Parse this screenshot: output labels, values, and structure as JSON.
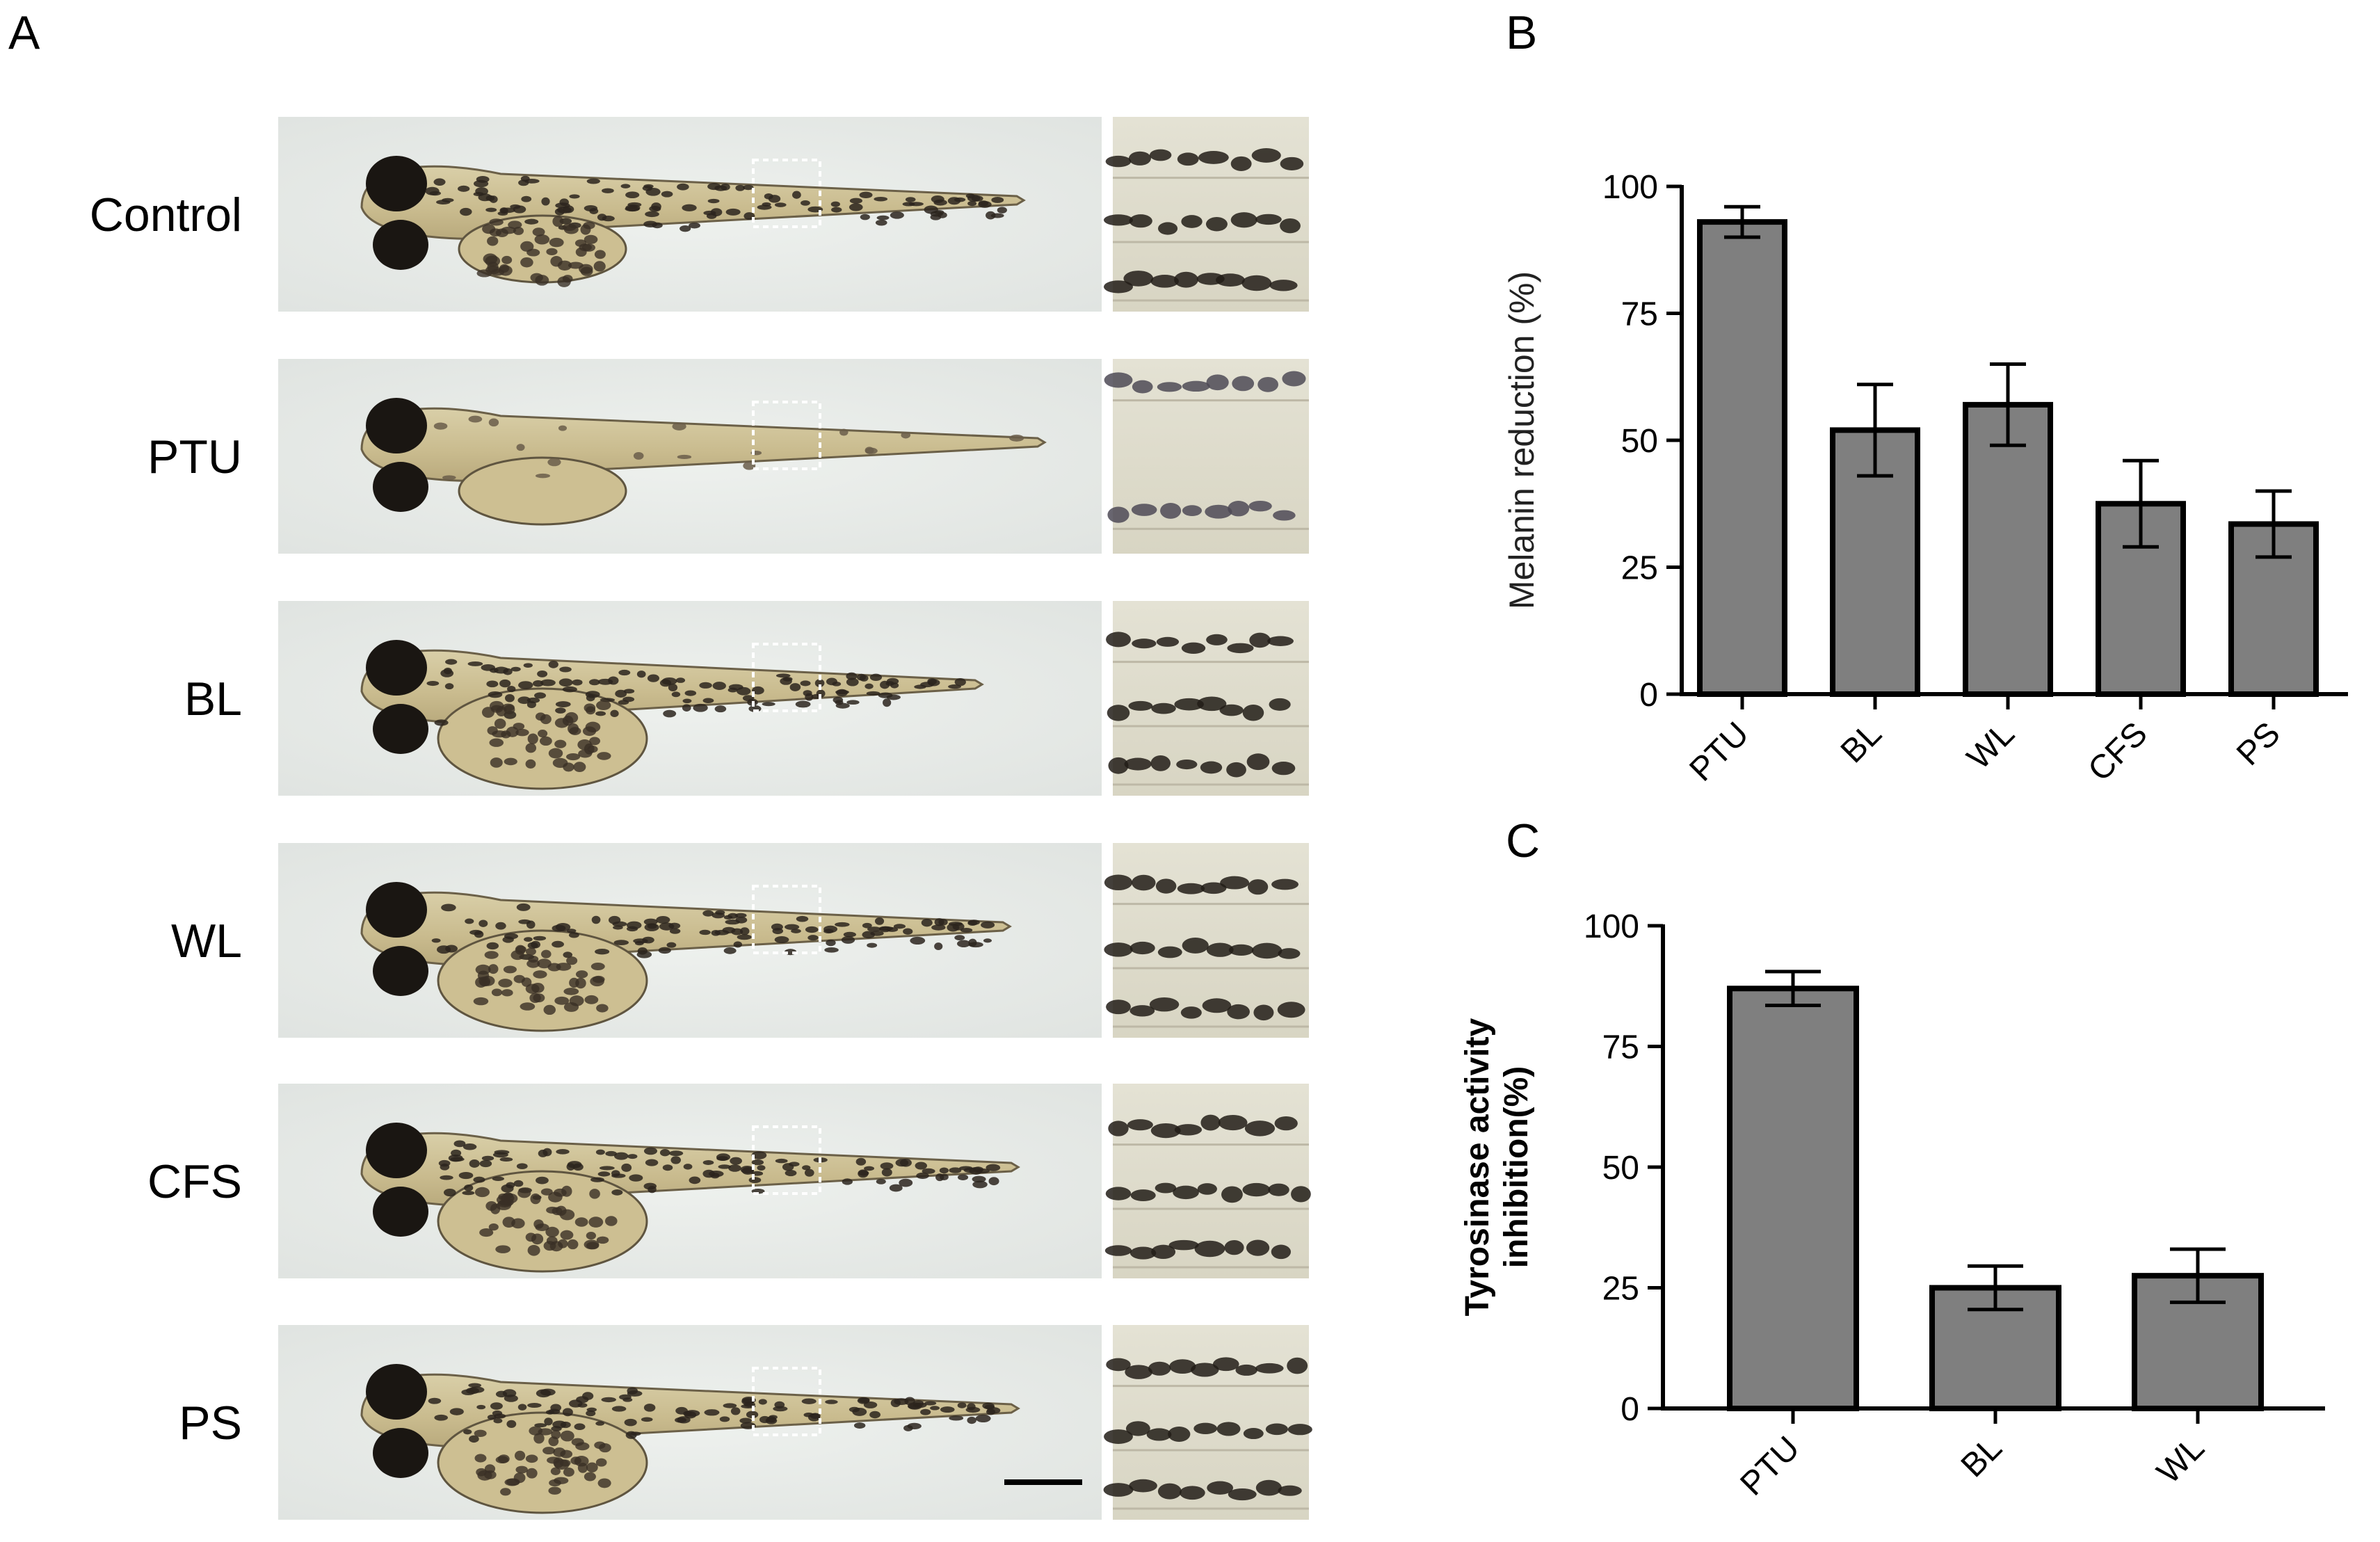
{
  "panel_a": {
    "letter": "A",
    "rows": [
      {
        "label": "Control"
      },
      {
        "label": "PTU"
      },
      {
        "label": "BL"
      },
      {
        "label": "WL"
      },
      {
        "label": "CFS"
      },
      {
        "label": "PS"
      }
    ]
  },
  "panel_b": {
    "letter": "B"
  },
  "panel_c": {
    "letter": "C"
  },
  "chart_data": [
    {
      "type": "bar",
      "categories": [
        "PTU",
        "BL",
        "WL",
        "CFS",
        "PS"
      ],
      "values": [
        93,
        52,
        57,
        37.5,
        33.5
      ],
      "errors": [
        3,
        9,
        8,
        8.5,
        6.5
      ],
      "title": "",
      "xlabel": "",
      "ylabel": "Melanin reduction (%)",
      "ylim": [
        0,
        100
      ],
      "yticks": [
        0,
        25,
        50,
        75,
        100
      ],
      "grid": false,
      "bar_color": "#7f7f7f"
    },
    {
      "type": "bar",
      "categories": [
        "PTU",
        "BL",
        "WL"
      ],
      "values": [
        87,
        25,
        27.5
      ],
      "errors": [
        3.5,
        4.5,
        5.5
      ],
      "title": "",
      "xlabel": "",
      "ylabel": "Tyrosinase activity inhibition(%)",
      "ylabel_lines": [
        "Tyrosinase activity",
        "inhibition(%)"
      ],
      "ylim": [
        0,
        100
      ],
      "yticks": [
        0,
        25,
        50,
        75,
        100
      ],
      "grid": false,
      "bar_color": "#7f7f7f"
    }
  ]
}
